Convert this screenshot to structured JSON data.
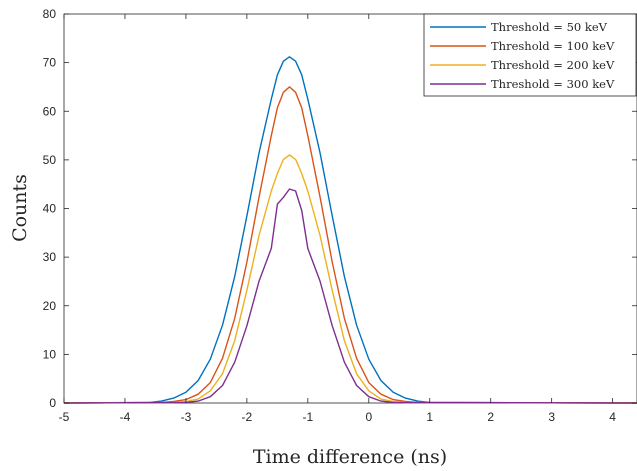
{
  "chart_data": {
    "type": "line",
    "xlabel": "Time difference (ns)",
    "ylabel": "Counts",
    "xlim": [
      -5,
      4.4
    ],
    "ylim": [
      0,
      80
    ],
    "xticks": [
      -5,
      -4,
      -3,
      -2,
      -1,
      0,
      1,
      2,
      3,
      4
    ],
    "yticks": [
      0,
      10,
      20,
      30,
      40,
      50,
      60,
      70,
      80
    ],
    "grid": false,
    "legend_position": "top-right",
    "series": [
      {
        "name": "Threshold = 50 keV",
        "color": "#0072BD",
        "peak_x": -1.3,
        "sigma": 0.5,
        "x": [
          -5,
          -3.6,
          -3.4,
          -3.2,
          -3.0,
          -2.8,
          -2.6,
          -2.4,
          -2.2,
          -2.0,
          -1.8,
          -1.6,
          -1.5,
          -1.4,
          -1.3,
          -1.2,
          -1.1,
          -1.0,
          -0.8,
          -0.6,
          -0.4,
          -0.2,
          0.0,
          0.2,
          0.4,
          0.6,
          0.8,
          1.0,
          4.4
        ],
        "values": [
          0,
          0.1,
          0.4,
          1.0,
          2.2,
          4.6,
          9.0,
          16.0,
          26.0,
          38.5,
          51.5,
          62.5,
          67.5,
          70.3,
          71.2,
          70.3,
          67.5,
          62.5,
          51.5,
          38.5,
          26.0,
          16.0,
          9.0,
          4.6,
          2.2,
          1.0,
          0.4,
          0.1,
          0
        ]
      },
      {
        "name": "Threshold = 100 keV",
        "color": "#D95319",
        "peak_x": -1.3,
        "sigma": 0.44,
        "x": [
          -5,
          -3.4,
          -3.2,
          -3.0,
          -2.8,
          -2.6,
          -2.4,
          -2.2,
          -2.0,
          -1.8,
          -1.6,
          -1.5,
          -1.4,
          -1.3,
          -1.2,
          -1.1,
          -1.0,
          -0.8,
          -0.6,
          -0.4,
          -0.2,
          0.0,
          0.2,
          0.4,
          0.6,
          0.8,
          4.4
        ],
        "values": [
          0,
          0.1,
          0.3,
          0.7,
          1.8,
          4.2,
          9.2,
          17.4,
          29.0,
          42.4,
          55.0,
          60.7,
          63.9,
          65.0,
          63.9,
          60.7,
          55.0,
          42.4,
          29.0,
          17.4,
          9.2,
          4.2,
          1.8,
          0.7,
          0.3,
          0.1,
          0
        ]
      },
      {
        "name": "Threshold = 200 keV",
        "color": "#EDB120",
        "peak_x": -1.3,
        "sigma": 0.4,
        "x": [
          -5,
          -3.2,
          -3.0,
          -2.8,
          -2.6,
          -2.4,
          -2.2,
          -2.0,
          -1.8,
          -1.6,
          -1.5,
          -1.4,
          -1.3,
          -1.2,
          -1.1,
          -1.0,
          -0.8,
          -0.6,
          -0.4,
          -0.2,
          0.0,
          0.2,
          0.4,
          0.6,
          4.4
        ],
        "values": [
          0,
          0.1,
          0.3,
          0.8,
          2.5,
          6.0,
          12.8,
          23.2,
          34.5,
          43.6,
          47.2,
          50.1,
          51.0,
          50.1,
          47.2,
          43.6,
          34.5,
          23.2,
          12.8,
          6.0,
          2.5,
          0.8,
          0.3,
          0.1,
          0
        ]
      },
      {
        "name": "Threshold = 300 keV",
        "color": "#7E2F8E",
        "peak_x": -1.3,
        "sigma": 0.37,
        "x": [
          -5,
          -3.0,
          -2.8,
          -2.6,
          -2.4,
          -2.2,
          -2.0,
          -1.8,
          -1.6,
          -1.5,
          -1.4,
          -1.3,
          -1.2,
          -1.1,
          -1.0,
          -0.8,
          -0.6,
          -0.4,
          -0.2,
          0.0,
          0.2,
          0.4,
          4.4
        ],
        "values": [
          0,
          0.1,
          0.4,
          1.3,
          3.6,
          8.4,
          15.9,
          25.1,
          31.8,
          40.9,
          42.3,
          44.0,
          43.6,
          39.6,
          31.8,
          25.1,
          15.9,
          8.4,
          3.6,
          1.3,
          0.4,
          0.1,
          0
        ]
      }
    ]
  }
}
